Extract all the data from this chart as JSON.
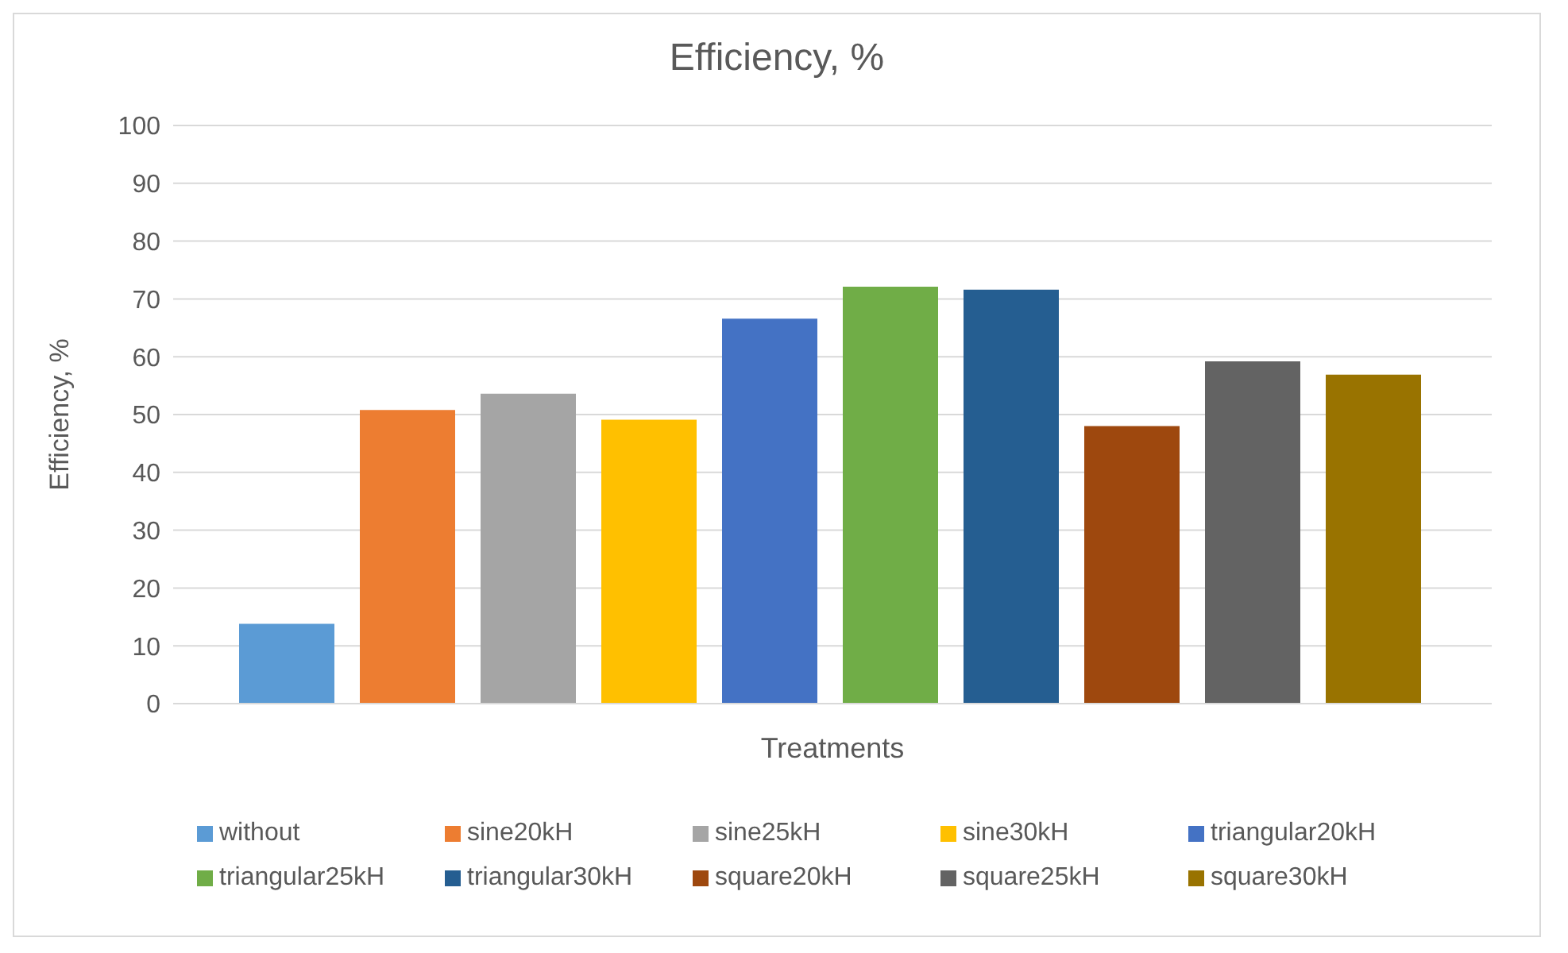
{
  "chart_data": {
    "type": "bar",
    "title": "Efficiency, %",
    "xlabel": "Treatments",
    "ylabel": "Efficiency, %",
    "categories": [
      null
    ],
    "series": [
      {
        "name": "without",
        "color": "#5b9bd5",
        "values": [
          13.8
        ]
      },
      {
        "name": "sine20kH",
        "color": "#ed7d31",
        "values": [
          50.8
        ]
      },
      {
        "name": "sine25kH",
        "color": "#a5a5a5",
        "values": [
          53.6
        ]
      },
      {
        "name": "sine30kH",
        "color": "#ffc000",
        "values": [
          49.1
        ]
      },
      {
        "name": "triangular20kH",
        "color": "#4472c4",
        "values": [
          66.6
        ]
      },
      {
        "name": "triangular25kH",
        "color": "#70ad47",
        "values": [
          72.1
        ]
      },
      {
        "name": "triangular30kH",
        "color": "#255e91",
        "values": [
          71.6
        ]
      },
      {
        "name": "square20kH",
        "color": "#9e480e",
        "values": [
          48.0
        ]
      },
      {
        "name": "square25kH",
        "color": "#636363",
        "values": [
          59.2
        ]
      },
      {
        "name": "square30kH",
        "color": "#997300",
        "values": [
          56.9
        ]
      }
    ],
    "ylim": [
      0,
      100
    ],
    "yticks": [
      0,
      10,
      20,
      30,
      40,
      50,
      60,
      70,
      80,
      90,
      100
    ],
    "grid": "y",
    "legend": "bottom"
  }
}
